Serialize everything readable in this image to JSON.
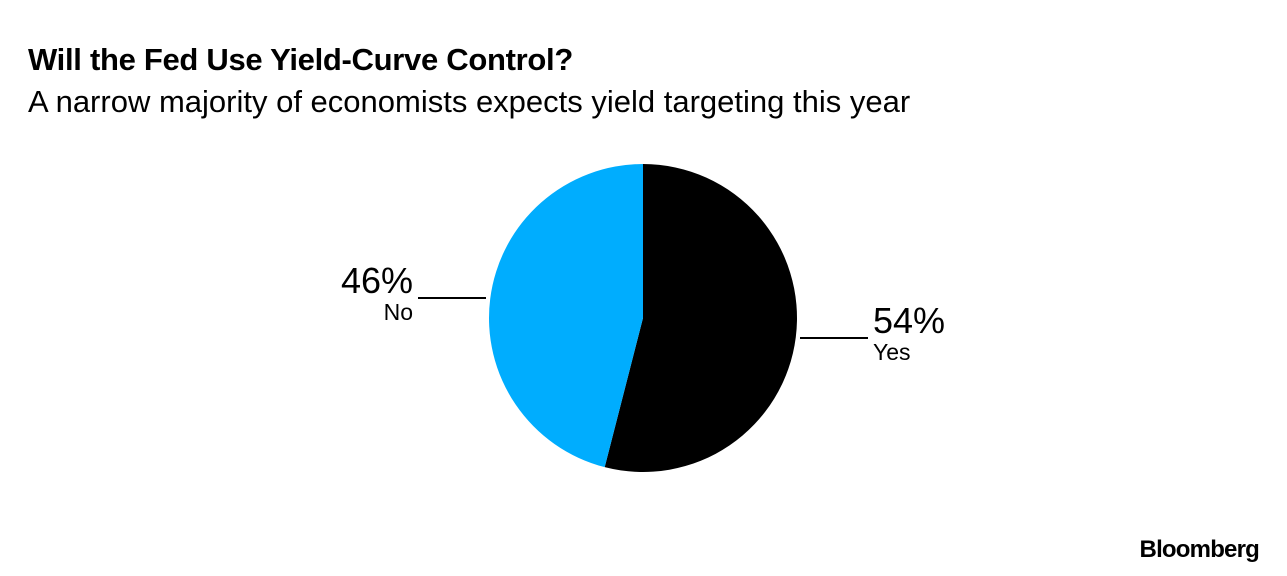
{
  "chart_data": {
    "type": "pie",
    "title": "Will the Fed Use Yield-Curve Control?",
    "subtitle": "A narrow majority of economists expects yield targeting this year",
    "slices": [
      {
        "label": "Yes",
        "value": 54,
        "value_label": "54%",
        "color": "#000000"
      },
      {
        "label": "No",
        "value": 46,
        "value_label": "46%",
        "color": "#00adfe"
      }
    ],
    "start_angle": "top",
    "direction": "clockwise"
  },
  "branding": {
    "logo": "Bloomberg"
  }
}
